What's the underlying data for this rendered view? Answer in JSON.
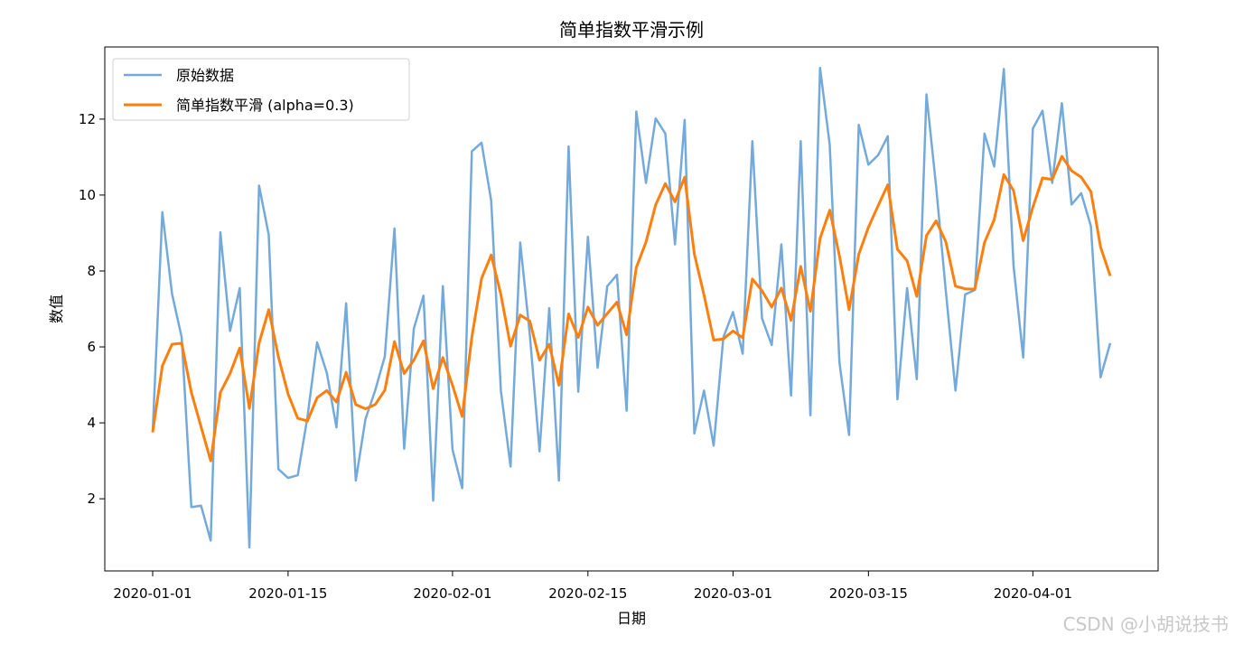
{
  "chart_data": {
    "type": "line",
    "title": "简单指数平滑示例",
    "xlabel": "日期",
    "ylabel": "数值",
    "x_start": "2020-01-01",
    "x_end": "2020-04-09",
    "xticks": [
      "2020-01-01",
      "2020-01-15",
      "2020-02-01",
      "2020-02-15",
      "2020-03-01",
      "2020-03-15",
      "2020-04-01"
    ],
    "yticks": [
      2,
      4,
      6,
      8,
      10,
      12
    ],
    "ylim": [
      0.1,
      13.9
    ],
    "legend_position": "top-left",
    "grid": false,
    "series": [
      {
        "name": "原始数据",
        "color": "#5b9bd5",
        "values": [
          3.75,
          9.55,
          7.4,
          6.25,
          1.78,
          1.82,
          0.9,
          9.02,
          6.42,
          7.55,
          0.72,
          10.25,
          8.95,
          2.78,
          2.55,
          2.62,
          4.15,
          6.12,
          5.32,
          3.88,
          7.15,
          2.48,
          4.1,
          4.85,
          5.75,
          9.12,
          3.32,
          6.48,
          7.35,
          1.95,
          7.6,
          3.3,
          2.28,
          11.15,
          11.38,
          9.85,
          4.85,
          2.85,
          8.75,
          6.3,
          3.25,
          7.02,
          2.48,
          11.28,
          4.82,
          8.9,
          5.45,
          7.6,
          7.9,
          4.32,
          12.2,
          10.32,
          12.02,
          11.62,
          8.7,
          11.98,
          3.72,
          4.85,
          3.4,
          6.25,
          6.92,
          5.82,
          11.42,
          6.75,
          6.05,
          8.7,
          4.72,
          11.42,
          4.2,
          13.35,
          11.32,
          5.6,
          3.68,
          11.85,
          10.8,
          11.05,
          11.55,
          4.62,
          7.55,
          5.15,
          12.65,
          10.22,
          7.48,
          4.85,
          7.38,
          7.5,
          11.62,
          10.75,
          13.32,
          8.15,
          5.72,
          11.75,
          12.22,
          10.32,
          12.42,
          9.75,
          10.05,
          9.18,
          5.2,
          6.1
        ]
      },
      {
        "name": "简单指数平滑 (alpha=0.3)",
        "color": "#ff7f0e",
        "values": [
          3.75,
          5.5,
          6.07,
          6.1,
          4.8,
          3.9,
          3.0,
          4.8,
          5.3,
          5.97,
          4.38,
          6.1,
          6.98,
          5.74,
          4.76,
          4.12,
          4.05,
          4.66,
          4.85,
          4.55,
          5.33,
          4.48,
          4.37,
          4.48,
          4.86,
          6.14,
          5.3,
          5.65,
          6.16,
          4.9,
          5.72,
          4.99,
          4.17,
          6.26,
          7.8,
          8.42,
          7.38,
          6.02,
          6.84,
          6.68,
          5.65,
          6.07,
          4.99,
          6.87,
          6.25,
          7.05,
          6.57,
          6.88,
          7.18,
          6.32,
          8.09,
          8.76,
          9.74,
          10.3,
          9.82,
          10.47,
          8.45,
          7.37,
          6.18,
          6.21,
          6.42,
          6.24,
          7.79,
          7.48,
          7.05,
          7.55,
          6.7,
          8.12,
          6.94,
          8.86,
          9.6,
          8.4,
          6.98,
          8.44,
          9.15,
          9.72,
          10.27,
          8.57,
          8.27,
          7.33,
          8.93,
          9.32,
          8.77,
          7.6,
          7.53,
          7.52,
          8.75,
          9.35,
          10.54,
          10.12,
          8.8,
          9.68,
          10.45,
          10.41,
          11.02,
          10.64,
          10.47,
          10.09,
          8.63,
          7.87
        ]
      }
    ]
  },
  "watermark": "CSDN @小胡说技书"
}
